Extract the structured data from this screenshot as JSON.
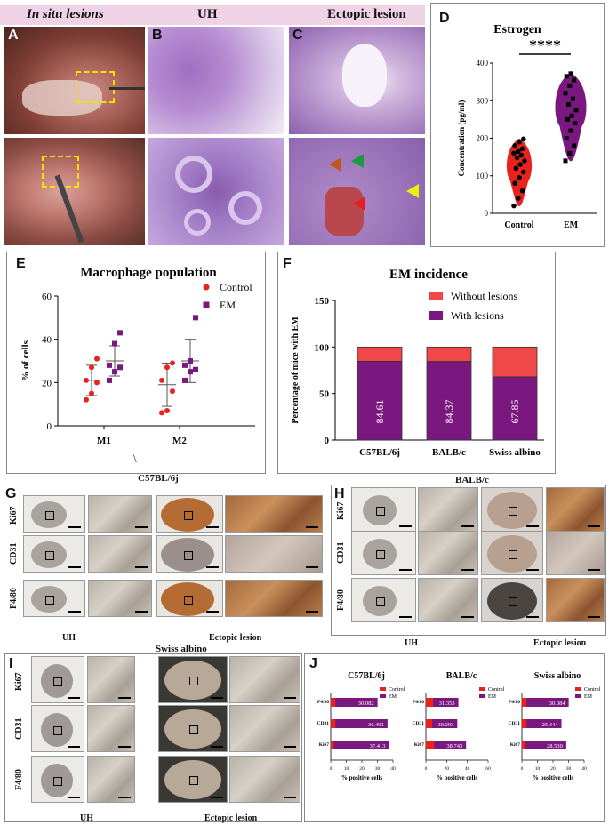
{
  "top_headers": {
    "in_situ": "In situ lesions",
    "uh": "UH",
    "ectopic": "Ectopic lesion"
  },
  "panels": {
    "A": "A",
    "B": "B",
    "C": "C",
    "D": "D",
    "E": "E",
    "F": "F",
    "G": "G",
    "H": "H",
    "I": "I",
    "J": "J"
  },
  "backslash": "\\",
  "strains": {
    "g": "C57BL/6j",
    "h": "BALB/c",
    "i": "Swiss albino"
  },
  "ihc_rows": [
    "Ki67",
    "CD31",
    "F4/80"
  ],
  "ihc_footer": {
    "uh": "UH",
    "ectopic": "Ectopic lesion"
  },
  "colors": {
    "control": "#e8231e",
    "em": "#7a1880",
    "without": "#f04848",
    "with": "#7a1880",
    "header_bg": "#efd2e6"
  },
  "chart_data": [
    {
      "id": "D",
      "type": "violin",
      "title": "Estrogen",
      "ylabel": "Concentration (pg/ml)",
      "ylim": [
        0,
        400
      ],
      "yticks": [
        0,
        100,
        200,
        300,
        400
      ],
      "categories": [
        "Control",
        "EM"
      ],
      "significance": "****",
      "series": [
        {
          "name": "Control",
          "values": [
            20,
            40,
            60,
            80,
            95,
            110,
            120,
            130,
            140,
            148,
            155,
            160,
            165,
            172,
            180,
            190,
            198
          ]
        },
        {
          "name": "EM",
          "values": [
            140,
            160,
            180,
            200,
            220,
            240,
            250,
            260,
            275,
            290,
            305,
            320,
            340,
            355,
            365,
            372
          ]
        }
      ]
    },
    {
      "id": "E",
      "type": "scatter",
      "title": "Macrophage population",
      "ylabel": "% of cells",
      "ylim": [
        0,
        60
      ],
      "yticks": [
        0,
        20,
        40,
        60
      ],
      "categories": [
        "M1",
        "M2"
      ],
      "legend": [
        "Control",
        "EM"
      ],
      "series": [
        {
          "name": "Control",
          "groups": [
            [
              12,
              15,
              20,
              21,
              27,
              31
            ],
            [
              6,
              7,
              16,
              21,
              27,
              29
            ]
          ],
          "mean": [
            21,
            19
          ],
          "sd": [
            7,
            10
          ]
        },
        {
          "name": "EM",
          "groups": [
            [
              21,
              25,
              27,
              28,
              38,
              43
            ],
            [
              21,
              25,
              26,
              28,
              30,
              50
            ]
          ],
          "mean": [
            30,
            30
          ],
          "sd": [
            7,
            10
          ]
        }
      ]
    },
    {
      "id": "F",
      "type": "stacked-bar",
      "title": "EM incidence",
      "ylabel": "Percentage of mice with EM",
      "ylim": [
        0,
        150
      ],
      "yticks": [
        0,
        50,
        100,
        150
      ],
      "categories": [
        "C57BL/6j",
        "BALB/c",
        "Swiss albino"
      ],
      "legend": [
        "Without lesions",
        "With lesions"
      ],
      "with_lesions": [
        84.61,
        84.37,
        67.85
      ],
      "with_labels": [
        "84.61",
        "84.37",
        "67.85"
      ]
    },
    {
      "id": "J",
      "type": "horizontal-bar",
      "xlabel": "% positive cells",
      "legend": [
        "Control",
        "EM"
      ],
      "markers": [
        "F4/80",
        "CD31",
        "Ki67"
      ],
      "subcharts": [
        {
          "title": "C57BL/6j",
          "xmax": 40,
          "xticks": [
            0,
            10,
            20,
            30,
            40
          ],
          "control": [
            3,
            3,
            2
          ],
          "em": [
            30.082,
            36.491,
            37.413
          ],
          "labels": [
            "30.082",
            "36.491",
            "37.413"
          ]
        },
        {
          "title": "BALB/c",
          "xmax": 60,
          "xticks": [
            0,
            20,
            40,
            60
          ],
          "control": [
            7,
            6,
            8
          ],
          "em": [
            31.353,
            30.293,
            38.743
          ],
          "labels": [
            "31.353",
            "30.293",
            "38.743"
          ]
        },
        {
          "title": "Swiss albino",
          "xmax": 40,
          "xticks": [
            0,
            10,
            20,
            30,
            40
          ],
          "control": [
            3,
            3,
            2
          ],
          "em": [
            30.084,
            25.444,
            28.53
          ],
          "labels": [
            "30.084",
            "25.444",
            "28.530"
          ]
        }
      ]
    }
  ]
}
